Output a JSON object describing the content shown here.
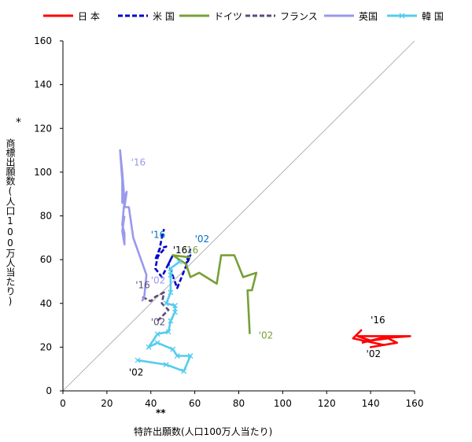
{
  "chart_data": {
    "type": "line",
    "xlabel": "特許出願数(人口100万人当たり)",
    "xlabel_mark": "**",
    "ylabel": "商標出願数(人口100万人当たり)",
    "ylabel_mark": "*",
    "xlim": [
      0,
      160
    ],
    "ylim": [
      0,
      160
    ],
    "xticks": [
      "0",
      "20",
      "40",
      "60",
      "80",
      "100",
      "120",
      "140",
      "160"
    ],
    "yticks": [
      "0",
      "20",
      "40",
      "60",
      "80",
      "100",
      "120",
      "140",
      "160"
    ],
    "grid": false,
    "legend_position": "top",
    "reference_line": "y = x",
    "series": [
      {
        "name": "日 本",
        "color": "#ff0000",
        "style": "solid",
        "marker": "none",
        "points": [
          [
            136,
            22
          ],
          [
            144,
            24
          ],
          [
            158,
            25
          ],
          [
            134,
            25
          ],
          [
            140,
            23
          ],
          [
            148,
            24
          ],
          [
            152,
            22
          ],
          [
            140,
            20
          ],
          [
            146,
            21
          ],
          [
            132,
            24
          ],
          [
            136,
            28
          ]
        ],
        "labels": [
          {
            "text": "'02",
            "x": 138,
            "y": 15.5,
            "color": "#000000"
          },
          {
            "text": "'16",
            "x": 140,
            "y": 31,
            "color": "#000000"
          }
        ]
      },
      {
        "name": "米 国",
        "color": "#0000cc",
        "style": "dashed",
        "marker": "none",
        "points": [
          [
            58,
            65
          ],
          [
            56,
            58
          ],
          [
            58,
            62
          ],
          [
            52,
            47
          ],
          [
            48,
            58
          ],
          [
            50,
            62
          ],
          [
            45,
            52
          ],
          [
            42,
            56
          ],
          [
            44,
            65
          ],
          [
            47,
            66
          ],
          [
            42,
            60
          ],
          [
            44,
            65
          ],
          [
            45,
            70
          ],
          [
            46,
            74
          ]
        ],
        "labels": [
          {
            "text": "'02",
            "x": 60,
            "y": 68,
            "color": "#0070c0"
          },
          {
            "text": "'16",
            "x": 40,
            "y": 70,
            "color": "#0070c0"
          }
        ]
      },
      {
        "name": "ドイツ",
        "color": "#77a037",
        "style": "solid",
        "marker": "none",
        "points": [
          [
            85,
            26
          ],
          [
            84,
            46
          ],
          [
            86,
            46
          ],
          [
            88,
            54
          ],
          [
            82,
            52
          ],
          [
            78,
            62
          ],
          [
            72,
            62
          ],
          [
            70,
            49
          ],
          [
            62,
            54
          ],
          [
            58,
            52
          ],
          [
            56,
            58
          ],
          [
            50,
            62
          ],
          [
            58,
            61
          ]
        ],
        "labels": [
          {
            "text": "'02",
            "x": 89,
            "y": 24,
            "color": "#77a037"
          },
          {
            "text": "'16",
            "x": 55,
            "y": 63,
            "color": "#77a037"
          }
        ]
      },
      {
        "name": "フランス",
        "color": "#604a7b",
        "style": "dashed",
        "marker": "none",
        "points": [
          [
            43,
            32
          ],
          [
            48,
            37
          ],
          [
            45,
            40
          ],
          [
            46,
            45
          ],
          [
            42,
            43
          ],
          [
            40,
            41
          ],
          [
            38,
            42
          ],
          [
            36,
            43
          ]
        ],
        "labels": [
          {
            "text": "'02",
            "x": 40,
            "y": 30,
            "color": "#604a7b"
          },
          {
            "text": "'16",
            "x": 33,
            "y": 47,
            "color": "#604a7b"
          }
        ]
      },
      {
        "name": "英国",
        "color": "#9999ee",
        "style": "solid",
        "marker": "none",
        "points": [
          [
            36,
            41
          ],
          [
            37,
            43
          ],
          [
            38,
            53
          ],
          [
            32,
            70
          ],
          [
            30,
            84
          ],
          [
            28,
            84
          ],
          [
            29,
            91
          ],
          [
            28,
            88
          ],
          [
            27,
            86
          ],
          [
            27,
            96
          ],
          [
            26,
            110
          ],
          [
            27,
            100
          ],
          [
            28,
            87
          ],
          [
            27,
            76
          ],
          [
            28,
            72
          ],
          [
            28,
            67
          ],
          [
            27,
            73
          ],
          [
            28,
            80
          ]
        ],
        "labels": [
          {
            "text": "'02",
            "x": 40,
            "y": 49,
            "color": "#9999ee"
          },
          {
            "text": "'16",
            "x": 31,
            "y": 103,
            "color": "#9999ee"
          }
        ]
      },
      {
        "name": "韓 国",
        "color": "#55ccee",
        "style": "solid",
        "marker": "x",
        "points": [
          [
            34,
            14
          ],
          [
            47,
            12
          ],
          [
            55,
            9
          ],
          [
            58,
            16
          ],
          [
            52,
            16
          ],
          [
            50,
            19
          ],
          [
            43,
            22
          ],
          [
            39,
            20
          ],
          [
            43,
            26
          ],
          [
            48,
            27
          ],
          [
            49,
            32
          ],
          [
            51,
            36
          ],
          [
            51,
            39
          ],
          [
            47,
            40
          ],
          [
            49,
            45
          ],
          [
            49,
            53
          ],
          [
            49,
            56
          ],
          [
            53,
            59
          ]
        ],
        "labels": [
          {
            "text": "'02",
            "x": 30,
            "y": 7,
            "color": "#000000"
          },
          {
            "text": "'16",
            "x": 50,
            "y": 63,
            "color": "#000000"
          }
        ]
      }
    ]
  }
}
